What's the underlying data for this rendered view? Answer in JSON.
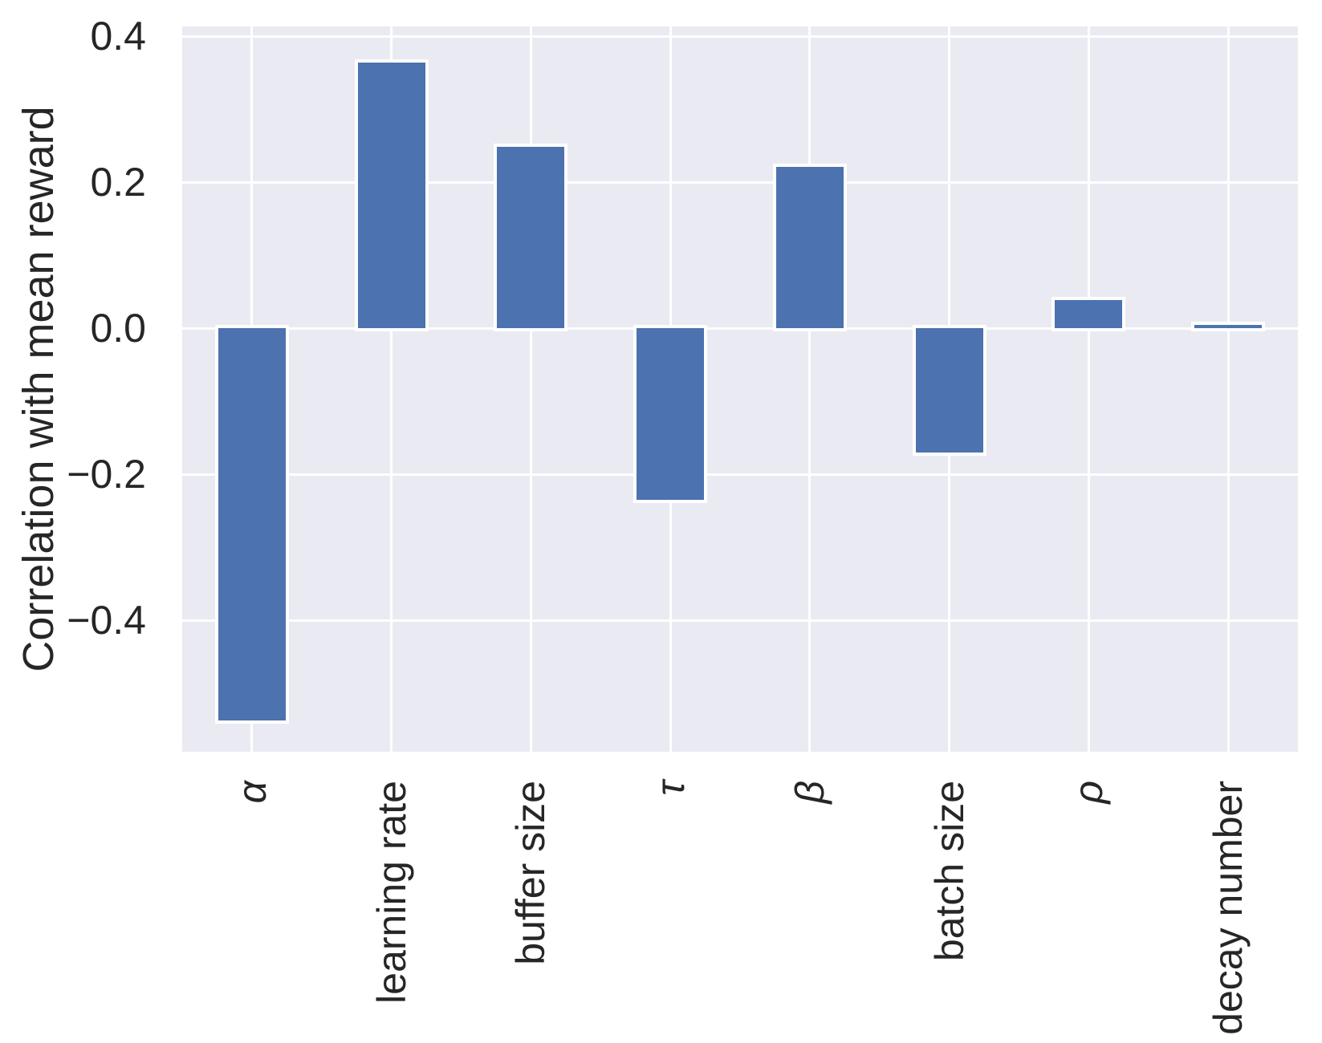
{
  "chart_data": {
    "type": "bar",
    "title": "",
    "xlabel": "",
    "ylabel": "Correlation with mean reward",
    "categories": [
      "α",
      "learning rate",
      "buffer size",
      "τ",
      "β",
      "batch size",
      "ρ",
      "decay number"
    ],
    "categories_italic": [
      true,
      false,
      false,
      true,
      true,
      false,
      true,
      false
    ],
    "values": [
      -0.537,
      0.364,
      0.249,
      -0.235,
      0.221,
      -0.17,
      0.039,
      0.005
    ],
    "yticks": [
      0.4,
      0.2,
      0.0,
      -0.2,
      -0.4
    ],
    "ytick_labels": [
      "0.4",
      "0.2",
      "0.0",
      "−0.2",
      "−0.4"
    ],
    "ylim": [
      -0.5797,
      0.4137
    ],
    "grid": true,
    "legend": null,
    "bar_color": "#4c72b0",
    "bar_edge_color": "#ffffff",
    "panel_color": "#eaeaf2",
    "grid_color": "#ffffff",
    "text_color": "#262626"
  }
}
